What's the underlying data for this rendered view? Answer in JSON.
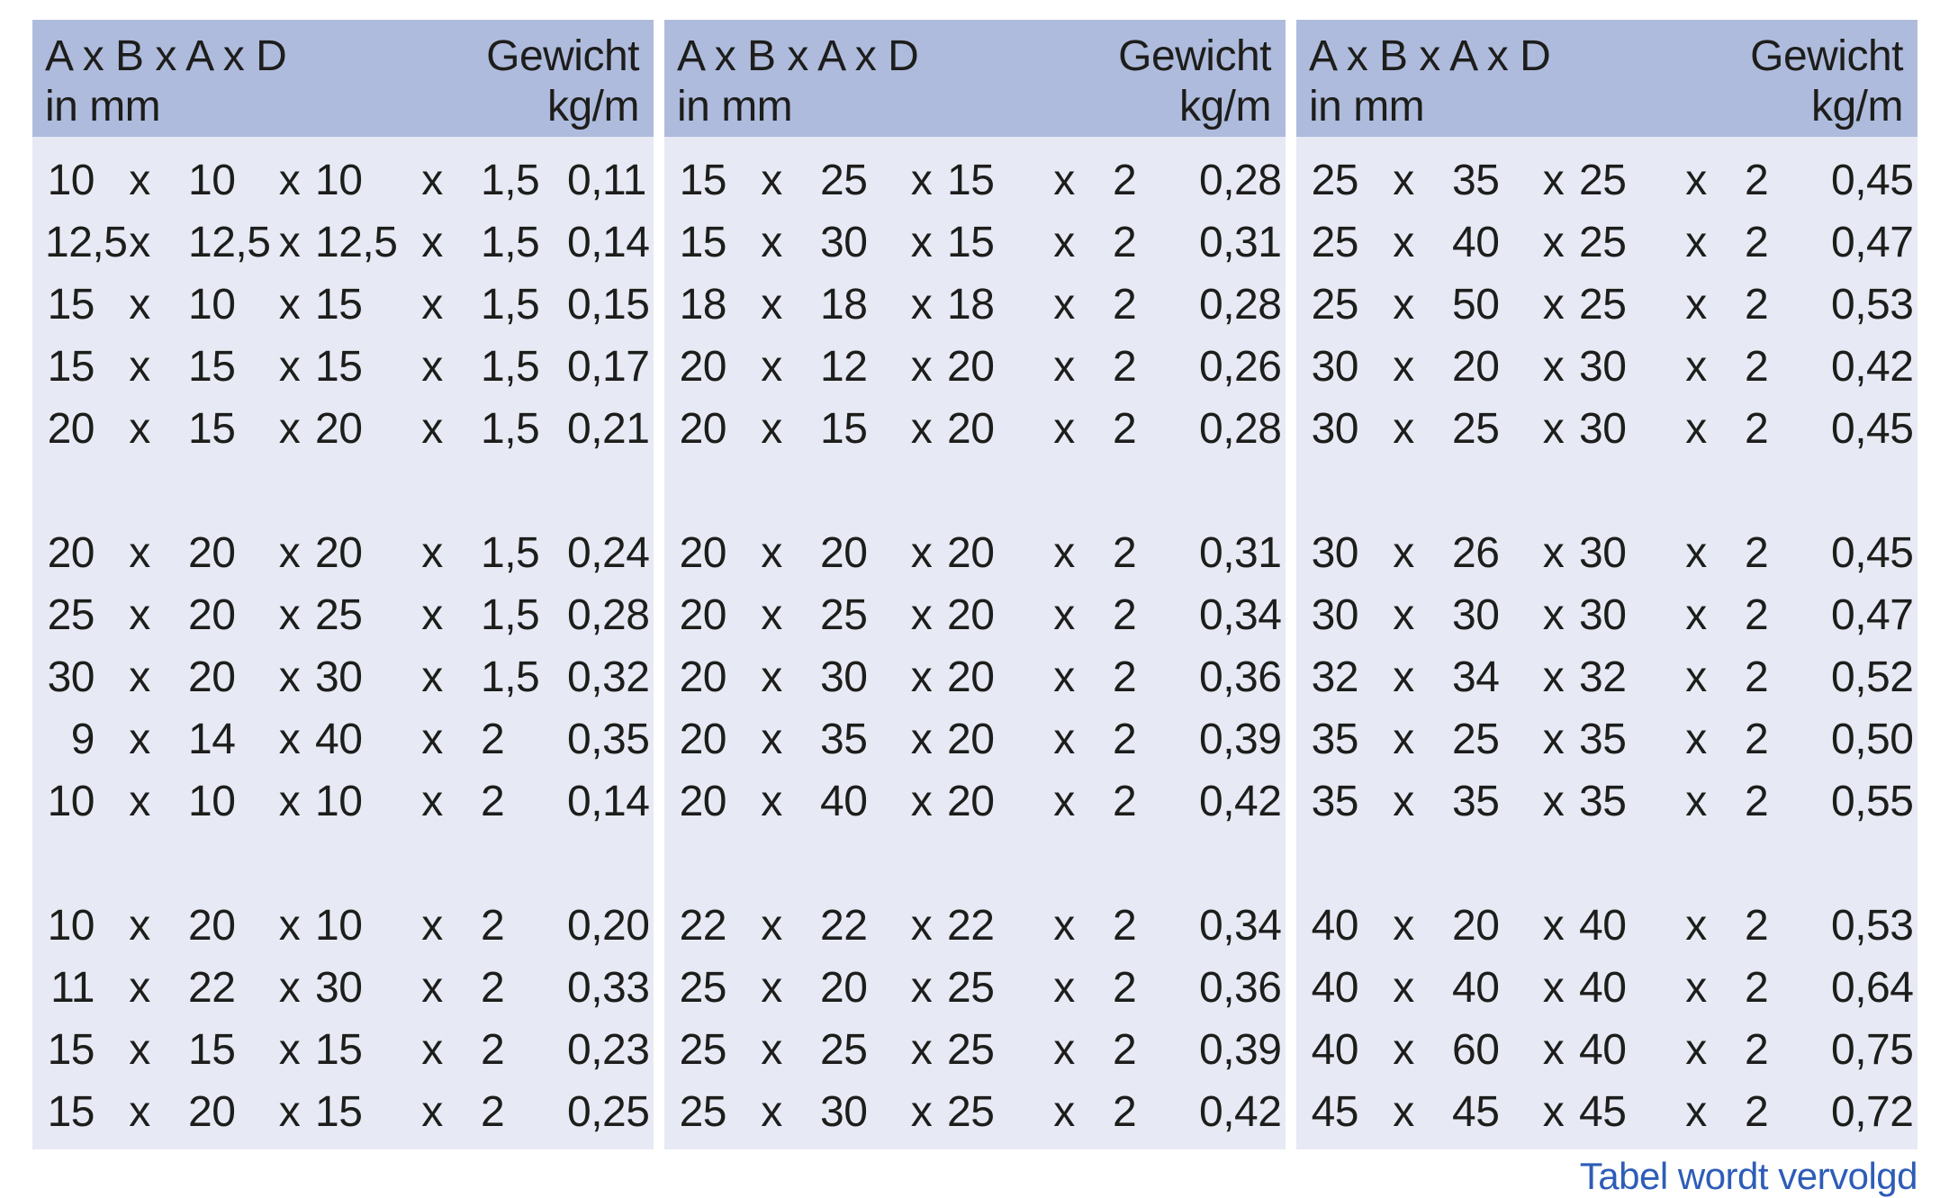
{
  "colors": {
    "header_bg": "#aebbdc",
    "body_bg": "#e7eaf4",
    "text": "#1d1d1b",
    "note": "#2e5cb8",
    "page_bg": "#ffffff"
  },
  "header": {
    "dims_line1": "A x B x A x D",
    "dims_line2": "in mm",
    "weight_line1": "Gewicht",
    "weight_line2": "kg/m"
  },
  "separator": "x",
  "footer_note": "Tabel wordt vervolgd",
  "tables": [
    {
      "groups": [
        {
          "rows": [
            {
              "a": "10",
              "b": "10",
              "a2": "10",
              "d": "1,5",
              "kg": "0,11"
            },
            {
              "a": "12,5",
              "b": "12,5",
              "a2": "12,5",
              "d": "1,5",
              "kg": "0,14"
            },
            {
              "a": "15",
              "b": "10",
              "a2": "15",
              "d": "1,5",
              "kg": "0,15"
            },
            {
              "a": "15",
              "b": "15",
              "a2": "15",
              "d": "1,5",
              "kg": "0,17"
            },
            {
              "a": "20",
              "b": "15",
              "a2": "20",
              "d": "1,5",
              "kg": "0,21"
            }
          ]
        },
        {
          "rows": [
            {
              "a": "20",
              "b": "20",
              "a2": "20",
              "d": "1,5",
              "kg": "0,24"
            },
            {
              "a": "25",
              "b": "20",
              "a2": "25",
              "d": "1,5",
              "kg": "0,28"
            },
            {
              "a": "30",
              "b": "20",
              "a2": "30",
              "d": "1,5",
              "kg": "0,32"
            },
            {
              "a": "9",
              "b": "14",
              "a2": "40",
              "d": "2",
              "kg": "0,35"
            },
            {
              "a": "10",
              "b": "10",
              "a2": "10",
              "d": "2",
              "kg": "0,14"
            }
          ]
        },
        {
          "rows": [
            {
              "a": "10",
              "b": "20",
              "a2": "10",
              "d": "2",
              "kg": "0,20"
            },
            {
              "a": "11",
              "b": "22",
              "a2": "30",
              "d": "2",
              "kg": "0,33"
            },
            {
              "a": "15",
              "b": "15",
              "a2": "15",
              "d": "2",
              "kg": "0,23"
            },
            {
              "a": "15",
              "b": "20",
              "a2": "15",
              "d": "2",
              "kg": "0,25"
            }
          ]
        }
      ]
    },
    {
      "groups": [
        {
          "rows": [
            {
              "a": "15",
              "b": "25",
              "a2": "15",
              "d": "2",
              "kg": "0,28"
            },
            {
              "a": "15",
              "b": "30",
              "a2": "15",
              "d": "2",
              "kg": "0,31"
            },
            {
              "a": "18",
              "b": "18",
              "a2": "18",
              "d": "2",
              "kg": "0,28"
            },
            {
              "a": "20",
              "b": "12",
              "a2": "20",
              "d": "2",
              "kg": "0,26"
            },
            {
              "a": "20",
              "b": "15",
              "a2": "20",
              "d": "2",
              "kg": "0,28"
            }
          ]
        },
        {
          "rows": [
            {
              "a": "20",
              "b": "20",
              "a2": "20",
              "d": "2",
              "kg": "0,31"
            },
            {
              "a": "20",
              "b": "25",
              "a2": "20",
              "d": "2",
              "kg": "0,34"
            },
            {
              "a": "20",
              "b": "30",
              "a2": "20",
              "d": "2",
              "kg": "0,36"
            },
            {
              "a": "20",
              "b": "35",
              "a2": "20",
              "d": "2",
              "kg": "0,39"
            },
            {
              "a": "20",
              "b": "40",
              "a2": "20",
              "d": "2",
              "kg": "0,42"
            }
          ]
        },
        {
          "rows": [
            {
              "a": "22",
              "b": "22",
              "a2": "22",
              "d": "2",
              "kg": "0,34"
            },
            {
              "a": "25",
              "b": "20",
              "a2": "25",
              "d": "2",
              "kg": "0,36"
            },
            {
              "a": "25",
              "b": "25",
              "a2": "25",
              "d": "2",
              "kg": "0,39"
            },
            {
              "a": "25",
              "b": "30",
              "a2": "25",
              "d": "2",
              "kg": "0,42"
            }
          ]
        }
      ]
    },
    {
      "groups": [
        {
          "rows": [
            {
              "a": "25",
              "b": "35",
              "a2": "25",
              "d": "2",
              "kg": "0,45"
            },
            {
              "a": "25",
              "b": "40",
              "a2": "25",
              "d": "2",
              "kg": "0,47"
            },
            {
              "a": "25",
              "b": "50",
              "a2": "25",
              "d": "2",
              "kg": "0,53"
            },
            {
              "a": "30",
              "b": "20",
              "a2": "30",
              "d": "2",
              "kg": "0,42"
            },
            {
              "a": "30",
              "b": "25",
              "a2": "30",
              "d": "2",
              "kg": "0,45"
            }
          ]
        },
        {
          "rows": [
            {
              "a": "30",
              "b": "26",
              "a2": "30",
              "d": "2",
              "kg": "0,45"
            },
            {
              "a": "30",
              "b": "30",
              "a2": "30",
              "d": "2",
              "kg": "0,47"
            },
            {
              "a": "32",
              "b": "34",
              "a2": "32",
              "d": "2",
              "kg": "0,52"
            },
            {
              "a": "35",
              "b": "25",
              "a2": "35",
              "d": "2",
              "kg": "0,50"
            },
            {
              "a": "35",
              "b": "35",
              "a2": "35",
              "d": "2",
              "kg": "0,55"
            }
          ]
        },
        {
          "rows": [
            {
              "a": "40",
              "b": "20",
              "a2": "40",
              "d": "2",
              "kg": "0,53"
            },
            {
              "a": "40",
              "b": "40",
              "a2": "40",
              "d": "2",
              "kg": "0,64"
            },
            {
              "a": "40",
              "b": "60",
              "a2": "40",
              "d": "2",
              "kg": "0,75"
            },
            {
              "a": "45",
              "b": "45",
              "a2": "45",
              "d": "2",
              "kg": "0,72"
            }
          ]
        }
      ]
    }
  ]
}
